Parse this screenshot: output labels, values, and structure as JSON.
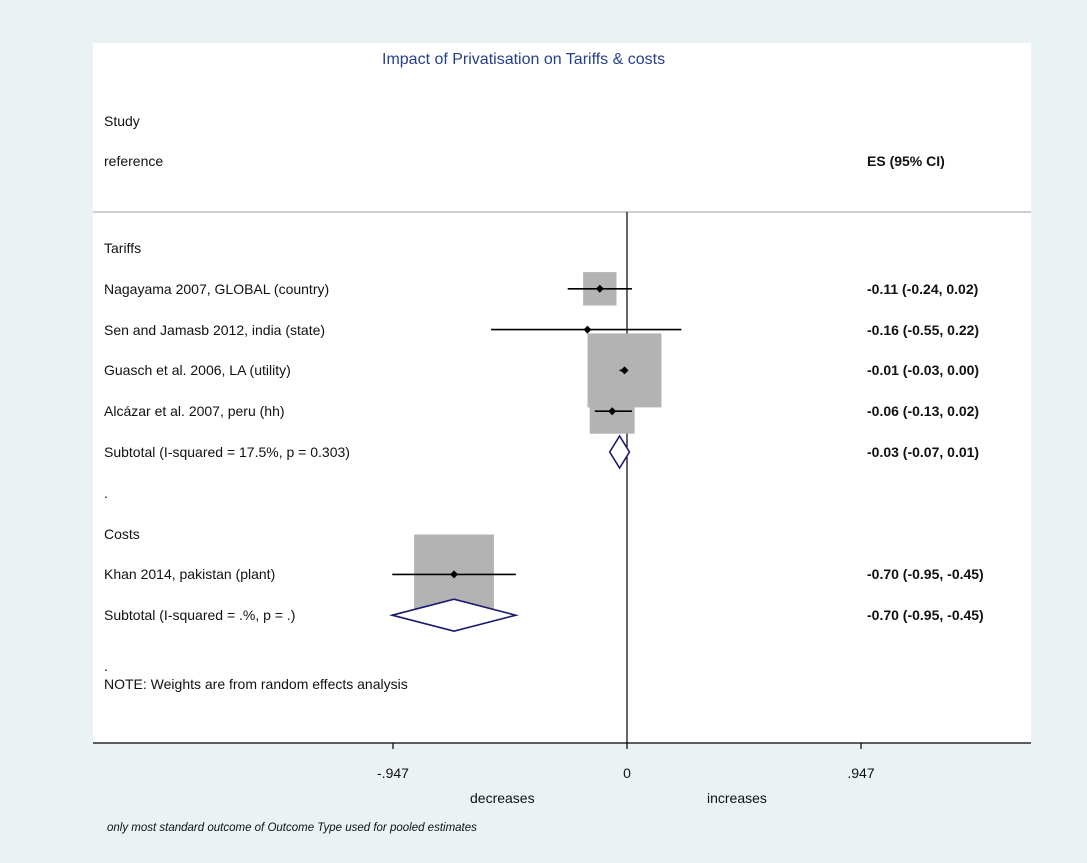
{
  "title": "Impact of Privatisation on Tariffs & costs",
  "header": {
    "study": "Study",
    "reference": "reference",
    "es_label": "ES (95% CI)"
  },
  "x_axis": {
    "ticks": [
      {
        "value": -0.947,
        "label": "-.947"
      },
      {
        "value": 0,
        "label": "0"
      },
      {
        "value": 0.947,
        "label": ".947"
      }
    ],
    "left_label": "decreases",
    "right_label": "increases"
  },
  "note_dot": ".",
  "note": "NOTE: Weights are from random effects analysis",
  "footnote": "only most standard outcome of Outcome Type used for pooled estimates",
  "colors": {
    "background": "#eaf2f3",
    "panel": "#ffffff",
    "title": "#27408b",
    "box": "#b3b3b3",
    "diamond": "#1a1a6e",
    "line": "#000000"
  },
  "chart_data": {
    "type": "forest",
    "title": "Impact of Privatisation on Tariffs & costs",
    "xlim": [
      -1.9,
      1.63
    ],
    "rows": [
      {
        "kind": "group",
        "label": "Tariffs"
      },
      {
        "kind": "study",
        "label": "Nagayama 2007, GLOBAL (country)",
        "es": -0.11,
        "lo": -0.24,
        "hi": 0.02,
        "ci_text": "-0.11 (-0.24, 0.02)",
        "box": 0.06
      },
      {
        "kind": "study",
        "label": "Sen and Jamasb 2012, india (state)",
        "es": -0.16,
        "lo": -0.55,
        "hi": 0.22,
        "ci_text": "-0.16 (-0.55, 0.22)",
        "box": 0.0
      },
      {
        "kind": "study",
        "label": "Guasch et al. 2006, LA (utility)",
        "es": -0.01,
        "lo": -0.03,
        "hi": 0.0,
        "ci_text": "-0.01 (-0.03, 0.00)",
        "box": 0.2
      },
      {
        "kind": "study",
        "label": "Alcázar et al. 2007, peru (hh)",
        "es": -0.06,
        "lo": -0.13,
        "hi": 0.02,
        "ci_text": "-0.06 (-0.13, 0.02)",
        "box": 0.1
      },
      {
        "kind": "subtotal",
        "label": "Subtotal  (I-squared = 17.5%, p = 0.303)",
        "es": -0.03,
        "lo": -0.07,
        "hi": 0.01,
        "ci_text": "-0.03 (-0.07, 0.01)"
      },
      {
        "kind": "spacer",
        "label": "."
      },
      {
        "kind": "group",
        "label": "Costs"
      },
      {
        "kind": "study",
        "label": "Khan 2014, pakistan (plant)",
        "es": -0.7,
        "lo": -0.95,
        "hi": -0.45,
        "ci_text": "-0.70 (-0.95, -0.45)",
        "box": 0.22
      },
      {
        "kind": "subtotal",
        "label": "Subtotal  (I-squared = .%, p = .)",
        "es": -0.7,
        "lo": -0.95,
        "hi": -0.45,
        "ci_text": "-0.70 (-0.95, -0.45)"
      }
    ]
  }
}
